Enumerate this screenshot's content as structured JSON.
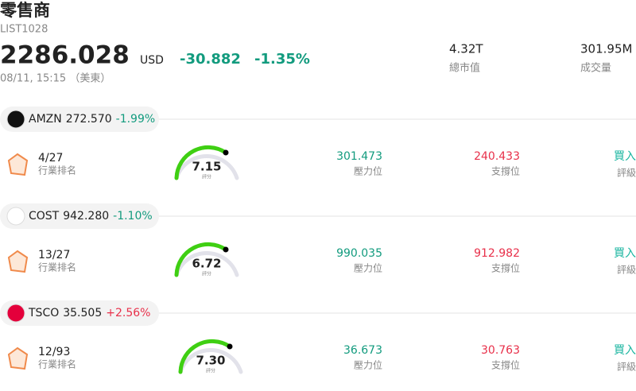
{
  "header": {
    "title": "零售商",
    "code": "LIST1028",
    "price": "2286.028",
    "currency": "USD",
    "change": "-30.882",
    "change_pct": "-1.35%",
    "change_color": "#129b7e",
    "timestamp": "08/11, 15:15 （美東）",
    "market_cap": "4.32T",
    "market_cap_label": "總市值",
    "volume": "301.95M",
    "volume_label": "成交量"
  },
  "stocks": [
    {
      "ticker": "AMZN",
      "price": "272.570",
      "change_pct": "-1.99%",
      "change_color": "#129b7e",
      "rank": "4/27",
      "rank_label": "行業排名",
      "score": "7.15",
      "score_label": "評分",
      "resistance": "301.473",
      "resistance_label": "壓力位",
      "support": "240.433",
      "support_label": "支撐位",
      "rating": "買入",
      "rating_label": "評級"
    },
    {
      "ticker": "COST",
      "price": "942.280",
      "change_pct": "-1.10%",
      "change_color": "#129b7e",
      "rank": "13/27",
      "rank_label": "行業排名",
      "score": "6.72",
      "score_label": "評分",
      "resistance": "990.035",
      "resistance_label": "壓力位",
      "support": "912.982",
      "support_label": "支撐位",
      "rating": "買入",
      "rating_label": "評級"
    },
    {
      "ticker": "TSCO",
      "price": "35.505",
      "change_pct": "+2.56%",
      "change_color": "#e8304a",
      "rank": "12/93",
      "rank_label": "行業排名",
      "score": "7.30",
      "score_label": "評分",
      "resistance": "36.673",
      "resistance_label": "壓力位",
      "support": "30.763",
      "support_label": "支撐位",
      "rating": "買入",
      "rating_label": "評級"
    }
  ]
}
